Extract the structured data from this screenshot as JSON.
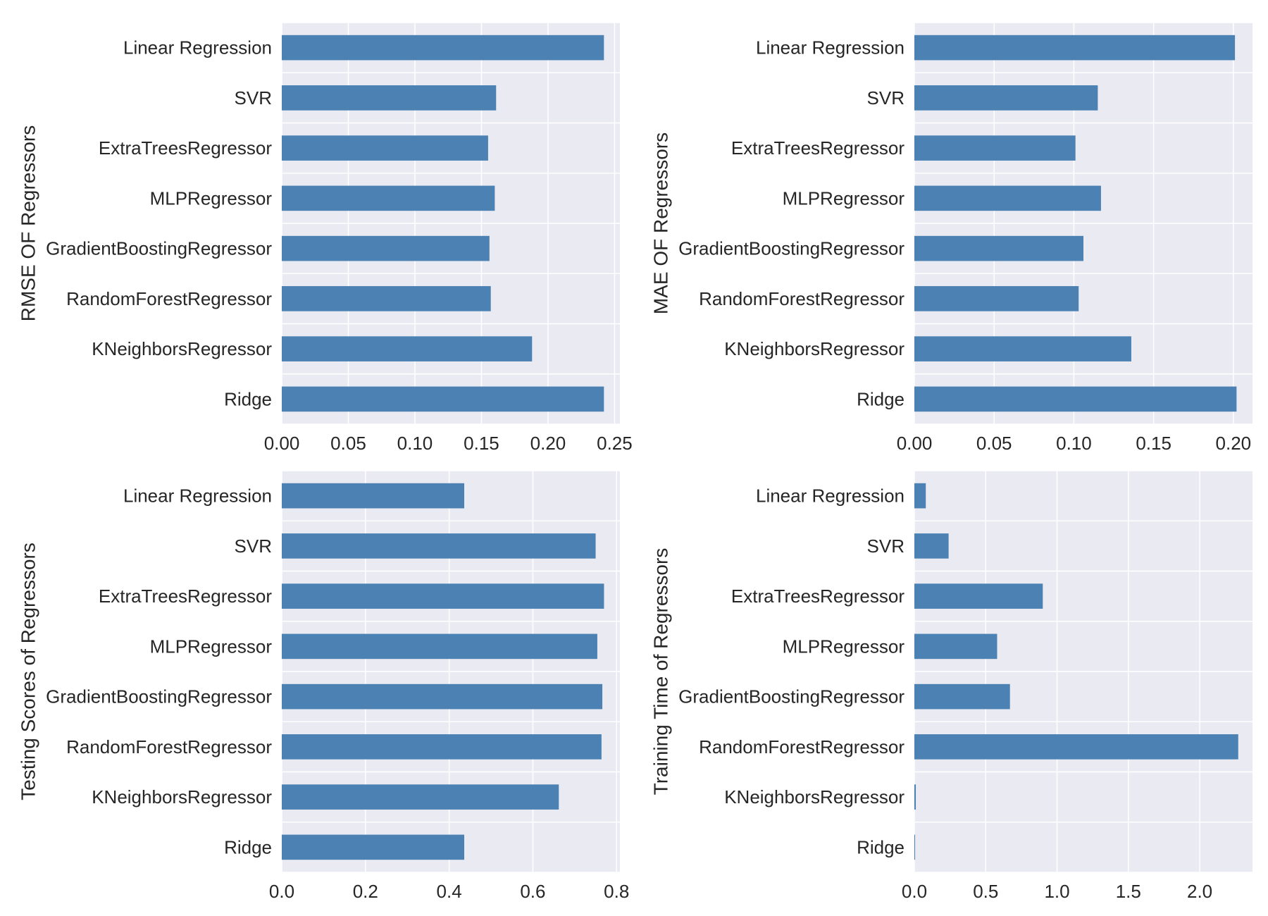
{
  "style": {
    "bar_color": "#4c81b3",
    "plot_bg": "#eaeaf2",
    "grid_color": "#ffffff",
    "text_color": "#262626"
  },
  "chart_data": [
    {
      "type": "bar",
      "orientation": "horizontal",
      "position": "top-left",
      "title": "",
      "ylabel": "RMSE OF Regressors",
      "xlabel": "",
      "categories": [
        "Linear Regression",
        "SVR",
        "ExtraTreesRegressor",
        "MLPRegressor",
        "GradientBoostingRegressor",
        "RandomForestRegressor",
        "KNeighborsRegressor",
        "Ridge"
      ],
      "values": [
        0.242,
        0.161,
        0.155,
        0.16,
        0.156,
        0.157,
        0.188,
        0.242
      ],
      "xlim": [
        0,
        0.254
      ],
      "xticks": [
        0.0,
        0.05,
        0.1,
        0.15,
        0.2,
        0.25
      ],
      "xtick_labels": [
        "0.00",
        "0.05",
        "0.10",
        "0.15",
        "0.20",
        "0.25"
      ],
      "grid": true
    },
    {
      "type": "bar",
      "orientation": "horizontal",
      "position": "top-right",
      "title": "",
      "ylabel": "MAE OF Regressors",
      "xlabel": "",
      "categories": [
        "Linear Regression",
        "SVR",
        "ExtraTreesRegressor",
        "MLPRegressor",
        "GradientBoostingRegressor",
        "RandomForestRegressor",
        "KNeighborsRegressor",
        "Ridge"
      ],
      "values": [
        0.201,
        0.115,
        0.101,
        0.117,
        0.106,
        0.103,
        0.136,
        0.202
      ],
      "xlim": [
        0,
        0.212
      ],
      "xticks": [
        0.0,
        0.05,
        0.1,
        0.15,
        0.2
      ],
      "xtick_labels": [
        "0.00",
        "0.05",
        "0.10",
        "0.15",
        "0.20"
      ],
      "grid": true
    },
    {
      "type": "bar",
      "orientation": "horizontal",
      "position": "bottom-left",
      "title": "",
      "ylabel": "Testing Scores of Regressors",
      "xlabel": "",
      "categories": [
        "Linear Regression",
        "SVR",
        "ExtraTreesRegressor",
        "MLPRegressor",
        "GradientBoostingRegressor",
        "RandomForestRegressor",
        "KNeighborsRegressor",
        "Ridge"
      ],
      "values": [
        0.436,
        0.75,
        0.77,
        0.754,
        0.766,
        0.764,
        0.662,
        0.436
      ],
      "xlim": [
        0,
        0.808
      ],
      "xticks": [
        0.0,
        0.2,
        0.4,
        0.6,
        0.8
      ],
      "xtick_labels": [
        "0.0",
        "0.2",
        "0.4",
        "0.6",
        "0.8"
      ],
      "grid": true
    },
    {
      "type": "bar",
      "orientation": "horizontal",
      "position": "bottom-right",
      "title": "",
      "ylabel": "Training Time of Regressors",
      "xlabel": "",
      "categories": [
        "Linear Regression",
        "SVR",
        "ExtraTreesRegressor",
        "MLPRegressor",
        "GradientBoostingRegressor",
        "RandomForestRegressor",
        "KNeighborsRegressor",
        "Ridge"
      ],
      "values": [
        0.08,
        0.24,
        0.9,
        0.58,
        0.67,
        2.27,
        0.01,
        0.005
      ],
      "xlim": [
        0,
        2.37
      ],
      "xticks": [
        0.0,
        0.5,
        1.0,
        1.5,
        2.0
      ],
      "xtick_labels": [
        "0.0",
        "0.5",
        "1.0",
        "1.5",
        "2.0"
      ],
      "grid": true
    }
  ]
}
